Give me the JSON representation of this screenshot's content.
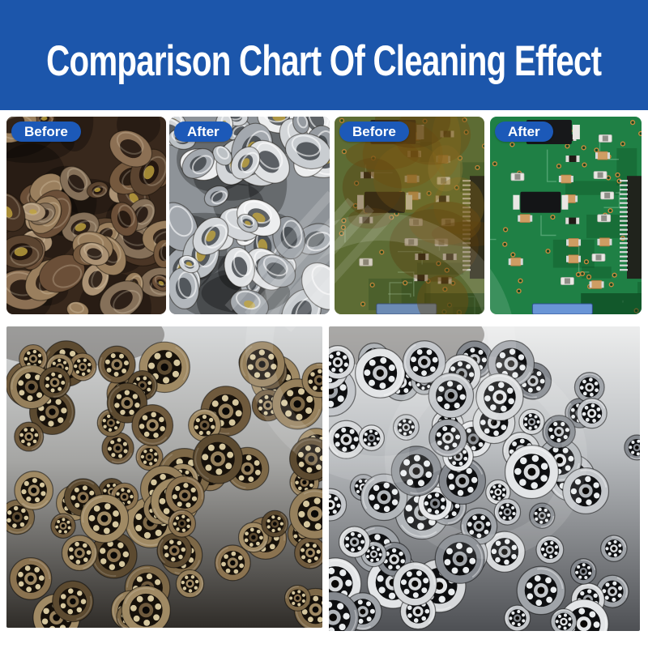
{
  "header": {
    "title": "Comparison Chart Of Cleaning Effect"
  },
  "colors": {
    "banner_blue": "#1c56ab",
    "badge_blue": "#1c59b8",
    "text_white": "#ffffff",
    "pcb_green": "#1f8045",
    "page_background": "#ffffff"
  },
  "photos": [
    {
      "name": "metal-parts-before",
      "badge": "Before",
      "content": "dirty-metal-parts-photo"
    },
    {
      "name": "metal-parts-after",
      "badge": "After",
      "content": "clean-metal-parts-photo"
    },
    {
      "name": "circuit-board-before",
      "badge": "Before",
      "content": "dirty-circuit-board-photo"
    },
    {
      "name": "circuit-board-after",
      "badge": "After",
      "content": "clean-circuit-board-photo"
    },
    {
      "name": "bearings-before",
      "content": "dirty-bearings-photo"
    },
    {
      "name": "bearings-after",
      "content": "clean-bearings-photo"
    }
  ]
}
